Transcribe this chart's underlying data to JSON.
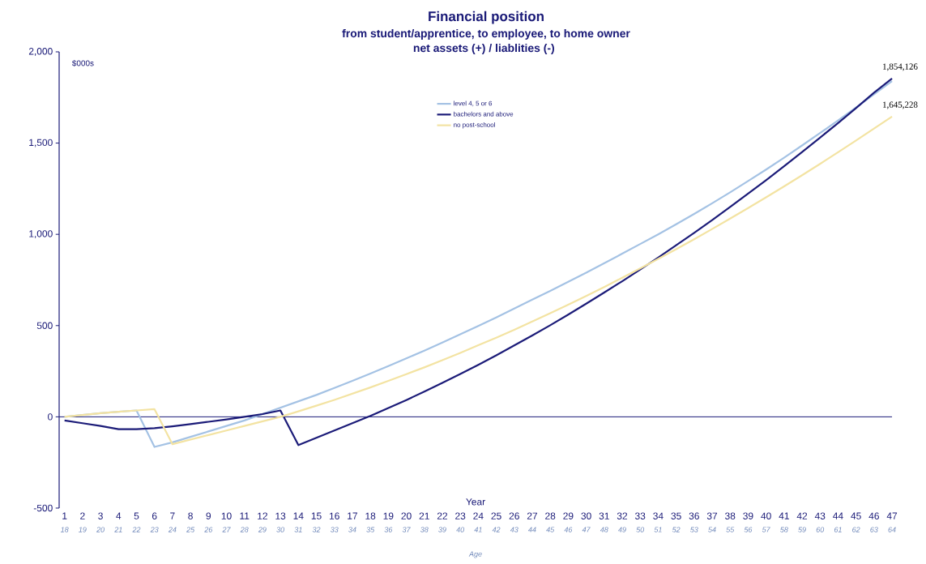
{
  "chart_data": {
    "type": "line",
    "title": "Financial position",
    "subtitle": "from student/apprentice, to employee, to home owner",
    "annotations": [
      "net assets (+) / liablities (-)",
      {
        "text": "1,854,126",
        "x": 47,
        "y": 1854
      },
      {
        "text": "1,645,228",
        "x": 47,
        "y": 1645
      }
    ],
    "xlabel": "Year",
    "x2label": "Age",
    "ylabel": "$000s",
    "x": [
      1,
      2,
      3,
      4,
      5,
      6,
      7,
      8,
      9,
      10,
      11,
      12,
      13,
      14,
      15,
      16,
      17,
      18,
      19,
      20,
      21,
      22,
      23,
      24,
      25,
      26,
      27,
      28,
      29,
      30,
      31,
      32,
      33,
      34,
      35,
      36,
      37,
      38,
      39,
      40,
      41,
      42,
      43,
      44,
      45,
      46,
      47
    ],
    "series": [
      {
        "name": "level 4, 5 or 6",
        "color": "#a4c2e4",
        "values": [
          0,
          10,
          20,
          28,
          35,
          -165,
          -140,
          -110,
          -80,
          -50,
          -20,
          15,
          50,
          85,
          120,
          158,
          197,
          237,
          278,
          320,
          363,
          407,
          452,
          498,
          545,
          593,
          642,
          690,
          740,
          790,
          842,
          894,
          947,
          1000,
          1055,
          1112,
          1170,
          1230,
          1292,
          1355,
          1420,
          1487,
          1555,
          1624,
          1695,
          1767,
          1840
        ]
      },
      {
        "name": "bachelors and above",
        "color": "#1b1b78",
        "values": [
          -20,
          -35,
          -50,
          -68,
          -68,
          -62,
          -52,
          -40,
          -27,
          -14,
          0,
          15,
          35,
          -155,
          -115,
          -75,
          -35,
          5,
          48,
          92,
          138,
          186,
          235,
          285,
          337,
          391,
          446,
          502,
          560,
          620,
          681,
          743,
          807,
          873,
          940,
          1008,
          1078,
          1150,
          1223,
          1297,
          1373,
          1451,
          1530,
          1610,
          1692,
          1776,
          1854
        ]
      },
      {
        "name": "no post-school",
        "color": "#f3e3a2",
        "values": [
          0,
          10,
          20,
          28,
          35,
          42,
          -150,
          -125,
          -100,
          -75,
          -50,
          -25,
          0,
          30,
          61,
          93,
          127,
          161,
          197,
          234,
          271,
          310,
          350,
          392,
          434,
          477,
          522,
          568,
          614,
          662,
          711,
          762,
          813,
          865,
          919,
          973,
          1029,
          1086,
          1144,
          1203,
          1263,
          1324,
          1386,
          1450,
          1514,
          1580,
          1645
        ]
      }
    ],
    "xlim": [
      0.7,
      47
    ],
    "xticks": [
      1,
      2,
      3,
      4,
      5,
      6,
      7,
      8,
      9,
      10,
      11,
      12,
      13,
      14,
      15,
      16,
      17,
      18,
      19,
      20,
      21,
      22,
      23,
      24,
      25,
      26,
      27,
      28,
      29,
      30,
      31,
      32,
      33,
      34,
      35,
      36,
      37,
      38,
      39,
      40,
      41,
      42,
      43,
      44,
      45,
      46,
      47
    ],
    "x2lim": [
      17.7,
      64
    ],
    "x2ticks": [
      18,
      19,
      20,
      21,
      22,
      23,
      24,
      25,
      26,
      27,
      28,
      29,
      30,
      31,
      32,
      33,
      34,
      35,
      36,
      37,
      38,
      39,
      40,
      41,
      42,
      43,
      44,
      45,
      46,
      47,
      48,
      49,
      50,
      51,
      52,
      53,
      54,
      55,
      56,
      57,
      58,
      59,
      60,
      61,
      62,
      63,
      64
    ],
    "ylim": [
      -500,
      2000
    ],
    "yticks": [
      {
        "value": -500,
        "label": "-500"
      },
      {
        "value": 0,
        "label": "0"
      },
      {
        "value": 500,
        "label": "500"
      },
      {
        "value": 1000,
        "label": "1,000"
      },
      {
        "value": 1500,
        "label": "1,500"
      },
      {
        "value": 2000,
        "label": "2,000"
      }
    ],
    "ref_lines": [
      {
        "axis": "y",
        "value": 0,
        "color": "#1b1b78"
      }
    ],
    "grid": false,
    "legend": "top",
    "marker": "none",
    "line_style": "solid"
  }
}
